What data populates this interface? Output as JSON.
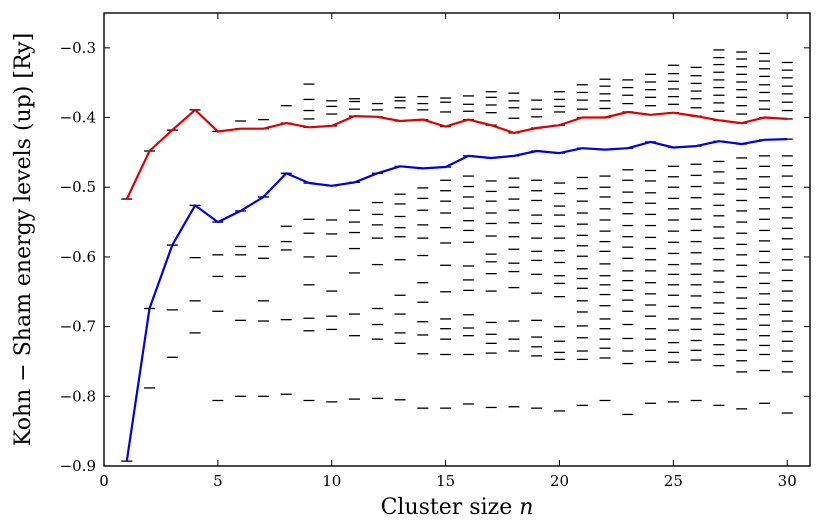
{
  "chart_data": {
    "type": "scatter",
    "xlabel": "Cluster size",
    "xlabel_var": "n",
    "ylabel": "Kohn − Sham energy levels (up) [Ry]",
    "xlim": [
      0,
      31
    ],
    "ylim": [
      -0.9,
      -0.25
    ],
    "xticks": [
      0,
      5,
      10,
      15,
      20,
      25,
      30
    ],
    "yticks": [
      -0.9,
      -0.8,
      -0.7,
      -0.6,
      -0.5,
      -0.4,
      -0.3
    ],
    "ytick_labels": [
      "−0.9",
      "−0.8",
      "−0.7",
      "−0.6",
      "−0.5",
      "−0.4",
      "−0.3"
    ],
    "colors": {
      "homo": "#e00000",
      "lumo": "#0000e0",
      "levels": "#000000"
    },
    "series": [
      {
        "name": "red",
        "color": "#e00000",
        "x": [
          1,
          2,
          3,
          4,
          5,
          6,
          7,
          8,
          9,
          10,
          11,
          12,
          13,
          14,
          15,
          16,
          17,
          18,
          19,
          20,
          21,
          22,
          23,
          24,
          25,
          26,
          27,
          28,
          29,
          30
        ],
        "values": [
          -0.517,
          -0.448,
          -0.418,
          -0.389,
          -0.42,
          -0.416,
          -0.416,
          -0.408,
          -0.414,
          -0.412,
          -0.398,
          -0.399,
          -0.405,
          -0.403,
          -0.413,
          -0.403,
          -0.411,
          -0.422,
          -0.415,
          -0.411,
          -0.4,
          -0.4,
          -0.392,
          -0.396,
          -0.393,
          -0.398,
          -0.404,
          -0.408,
          -0.4,
          -0.402
        ]
      },
      {
        "name": "blue",
        "color": "#0000e0",
        "x": [
          1,
          2,
          3,
          4,
          5,
          6,
          7,
          8,
          9,
          10,
          11,
          12,
          13,
          14,
          15,
          16,
          17,
          18,
          19,
          20,
          21,
          22,
          23,
          24,
          25,
          26,
          27,
          28,
          29,
          30
        ],
        "values": [
          -0.893,
          -0.674,
          -0.583,
          -0.526,
          -0.55,
          -0.534,
          -0.514,
          -0.48,
          -0.494,
          -0.498,
          -0.493,
          -0.48,
          -0.47,
          -0.473,
          -0.471,
          -0.455,
          -0.458,
          -0.455,
          -0.448,
          -0.451,
          -0.444,
          -0.446,
          -0.444,
          -0.435,
          -0.443,
          -0.441,
          -0.434,
          -0.438,
          -0.432,
          -0.431
        ]
      }
    ],
    "levels": [
      {
        "n": 1,
        "e": [
          -0.893,
          -0.517
        ]
      },
      {
        "n": 2,
        "e": [
          -0.788,
          -0.674,
          -0.448
        ]
      },
      {
        "n": 3,
        "e": [
          -0.744,
          -0.676,
          -0.583,
          -0.418
        ]
      },
      {
        "n": 4,
        "e": [
          -0.709,
          -0.663,
          -0.601,
          -0.526,
          -0.389
        ]
      },
      {
        "n": 5,
        "e": [
          -0.806,
          -0.678,
          -0.628,
          -0.597,
          -0.55,
          -0.42
        ]
      },
      {
        "n": 6,
        "e": [
          -0.8,
          -0.691,
          -0.628,
          -0.597,
          -0.585,
          -0.534,
          -0.416,
          -0.405
        ]
      },
      {
        "n": 7,
        "e": [
          -0.8,
          -0.692,
          -0.663,
          -0.602,
          -0.585,
          -0.514,
          -0.416,
          -0.403
        ]
      },
      {
        "n": 8,
        "e": [
          -0.797,
          -0.69,
          -0.59,
          -0.578,
          -0.556,
          -0.48,
          -0.408,
          -0.383
        ]
      },
      {
        "n": 9,
        "e": [
          -0.806,
          -0.706,
          -0.688,
          -0.64,
          -0.6,
          -0.566,
          -0.546,
          -0.494,
          -0.414,
          -0.402,
          -0.39,
          -0.374,
          -0.352
        ]
      },
      {
        "n": 10,
        "e": [
          -0.808,
          -0.704,
          -0.685,
          -0.649,
          -0.599,
          -0.567,
          -0.547,
          -0.498,
          -0.412,
          -0.395,
          -0.384,
          -0.376
        ]
      },
      {
        "n": 11,
        "e": [
          -0.804,
          -0.713,
          -0.682,
          -0.623,
          -0.588,
          -0.565,
          -0.55,
          -0.533,
          -0.493,
          -0.398,
          -0.388,
          -0.377,
          -0.373
        ]
      },
      {
        "n": 12,
        "e": [
          -0.803,
          -0.718,
          -0.697,
          -0.674,
          -0.611,
          -0.573,
          -0.554,
          -0.539,
          -0.522,
          -0.48,
          -0.399,
          -0.389,
          -0.38
        ]
      },
      {
        "n": 13,
        "e": [
          -0.805,
          -0.724,
          -0.709,
          -0.682,
          -0.655,
          -0.604,
          -0.571,
          -0.558,
          -0.542,
          -0.524,
          -0.51,
          -0.47,
          -0.405,
          -0.386,
          -0.376,
          -0.371
        ]
      },
      {
        "n": 14,
        "e": [
          -0.817,
          -0.739,
          -0.712,
          -0.693,
          -0.665,
          -0.637,
          -0.598,
          -0.573,
          -0.554,
          -0.533,
          -0.516,
          -0.501,
          -0.473,
          -0.403,
          -0.389,
          -0.38,
          -0.37
        ]
      },
      {
        "n": 15,
        "e": [
          -0.817,
          -0.74,
          -0.718,
          -0.703,
          -0.689,
          -0.65,
          -0.612,
          -0.58,
          -0.558,
          -0.537,
          -0.52,
          -0.505,
          -0.49,
          -0.471,
          -0.413,
          -0.392,
          -0.378,
          -0.372
        ]
      },
      {
        "n": 16,
        "e": [
          -0.811,
          -0.74,
          -0.713,
          -0.702,
          -0.683,
          -0.648,
          -0.633,
          -0.613,
          -0.579,
          -0.562,
          -0.548,
          -0.53,
          -0.514,
          -0.499,
          -0.484,
          -0.455,
          -0.403,
          -0.391,
          -0.381,
          -0.369
        ]
      },
      {
        "n": 17,
        "e": [
          -0.816,
          -0.738,
          -0.724,
          -0.711,
          -0.694,
          -0.649,
          -0.624,
          -0.607,
          -0.596,
          -0.57,
          -0.552,
          -0.537,
          -0.52,
          -0.506,
          -0.491,
          -0.458,
          -0.411,
          -0.393,
          -0.382,
          -0.371,
          -0.363
        ]
      },
      {
        "n": 18,
        "e": [
          -0.815,
          -0.735,
          -0.718,
          -0.692,
          -0.644,
          -0.621,
          -0.609,
          -0.589,
          -0.571,
          -0.551,
          -0.533,
          -0.517,
          -0.5,
          -0.487,
          -0.455,
          -0.422,
          -0.401,
          -0.386,
          -0.376,
          -0.365
        ]
      },
      {
        "n": 19,
        "e": [
          -0.817,
          -0.742,
          -0.729,
          -0.715,
          -0.691,
          -0.652,
          -0.625,
          -0.605,
          -0.592,
          -0.573,
          -0.552,
          -0.54,
          -0.519,
          -0.505,
          -0.49,
          -0.448,
          -0.415,
          -0.399,
          -0.388,
          -0.375
        ]
      },
      {
        "n": 20,
        "e": [
          -0.821,
          -0.747,
          -0.737,
          -0.721,
          -0.7,
          -0.657,
          -0.638,
          -0.627,
          -0.608,
          -0.591,
          -0.573,
          -0.556,
          -0.54,
          -0.527,
          -0.509,
          -0.494,
          -0.451,
          -0.411,
          -0.392,
          -0.384,
          -0.374,
          -0.363
        ]
      },
      {
        "n": 21,
        "e": [
          -0.813,
          -0.747,
          -0.735,
          -0.716,
          -0.699,
          -0.679,
          -0.663,
          -0.645,
          -0.631,
          -0.617,
          -0.599,
          -0.584,
          -0.569,
          -0.553,
          -0.537,
          -0.52,
          -0.502,
          -0.486,
          -0.444,
          -0.4,
          -0.388,
          -0.375,
          -0.364,
          -0.353
        ]
      },
      {
        "n": 22,
        "e": [
          -0.806,
          -0.745,
          -0.731,
          -0.718,
          -0.703,
          -0.689,
          -0.67,
          -0.654,
          -0.64,
          -0.627,
          -0.61,
          -0.592,
          -0.578,
          -0.563,
          -0.547,
          -0.531,
          -0.514,
          -0.5,
          -0.484,
          -0.446,
          -0.4,
          -0.387,
          -0.376,
          -0.366,
          -0.355,
          -0.345
        ]
      },
      {
        "n": 23,
        "e": [
          -0.826,
          -0.753,
          -0.735,
          -0.717,
          -0.697,
          -0.678,
          -0.662,
          -0.648,
          -0.634,
          -0.62,
          -0.602,
          -0.586,
          -0.571,
          -0.555,
          -0.538,
          -0.522,
          -0.507,
          -0.49,
          -0.475,
          -0.444,
          -0.392,
          -0.38,
          -0.368,
          -0.357,
          -0.346
        ]
      },
      {
        "n": 24,
        "e": [
          -0.81,
          -0.75,
          -0.734,
          -0.718,
          -0.703,
          -0.685,
          -0.669,
          -0.653,
          -0.637,
          -0.62,
          -0.604,
          -0.588,
          -0.572,
          -0.555,
          -0.539,
          -0.523,
          -0.508,
          -0.491,
          -0.476,
          -0.435,
          -0.396,
          -0.383,
          -0.371,
          -0.36,
          -0.349,
          -0.338
        ]
      },
      {
        "n": 25,
        "e": [
          -0.808,
          -0.751,
          -0.737,
          -0.723,
          -0.705,
          -0.689,
          -0.671,
          -0.655,
          -0.64,
          -0.625,
          -0.611,
          -0.595,
          -0.579,
          -0.563,
          -0.547,
          -0.531,
          -0.516,
          -0.5,
          -0.485,
          -0.47,
          -0.443,
          -0.393,
          -0.381,
          -0.37,
          -0.359,
          -0.348,
          -0.337,
          -0.325
        ]
      },
      {
        "n": 26,
        "e": [
          -0.806,
          -0.748,
          -0.734,
          -0.72,
          -0.704,
          -0.689,
          -0.673,
          -0.656,
          -0.64,
          -0.625,
          -0.61,
          -0.594,
          -0.578,
          -0.562,
          -0.546,
          -0.531,
          -0.515,
          -0.499,
          -0.483,
          -0.467,
          -0.441,
          -0.398,
          -0.386,
          -0.373,
          -0.362,
          -0.351,
          -0.34,
          -0.328
        ]
      },
      {
        "n": 27,
        "e": [
          -0.813,
          -0.756,
          -0.74,
          -0.726,
          -0.711,
          -0.697,
          -0.681,
          -0.666,
          -0.651,
          -0.636,
          -0.62,
          -0.604,
          -0.588,
          -0.573,
          -0.557,
          -0.541,
          -0.526,
          -0.51,
          -0.494,
          -0.478,
          -0.463,
          -0.434,
          -0.404,
          -0.391,
          -0.379,
          -0.368,
          -0.357,
          -0.346,
          -0.335,
          -0.324,
          -0.314,
          -0.303
        ]
      },
      {
        "n": 28,
        "e": [
          -0.818,
          -0.765,
          -0.749,
          -0.734,
          -0.719,
          -0.704,
          -0.689,
          -0.674,
          -0.659,
          -0.644,
          -0.628,
          -0.612,
          -0.597,
          -0.582,
          -0.566,
          -0.55,
          -0.534,
          -0.519,
          -0.503,
          -0.488,
          -0.473,
          -0.458,
          -0.438,
          -0.408,
          -0.395,
          -0.383,
          -0.371,
          -0.36,
          -0.349,
          -0.338,
          -0.327,
          -0.316,
          -0.306
        ]
      },
      {
        "n": 29,
        "e": [
          -0.81,
          -0.763,
          -0.74,
          -0.727,
          -0.713,
          -0.698,
          -0.683,
          -0.668,
          -0.653,
          -0.638,
          -0.623,
          -0.608,
          -0.592,
          -0.577,
          -0.562,
          -0.546,
          -0.531,
          -0.515,
          -0.5,
          -0.485,
          -0.47,
          -0.455,
          -0.432,
          -0.4,
          -0.388,
          -0.376,
          -0.364,
          -0.353,
          -0.341,
          -0.33,
          -0.319,
          -0.308
        ]
      },
      {
        "n": 30,
        "e": [
          -0.824,
          -0.765,
          -0.75,
          -0.735,
          -0.721,
          -0.707,
          -0.692,
          -0.678,
          -0.663,
          -0.649,
          -0.634,
          -0.619,
          -0.604,
          -0.589,
          -0.574,
          -0.559,
          -0.544,
          -0.529,
          -0.514,
          -0.499,
          -0.484,
          -0.469,
          -0.455,
          -0.431,
          -0.402,
          -0.39,
          -0.378,
          -0.366,
          -0.355,
          -0.343,
          -0.332,
          -0.321
        ]
      }
    ]
  }
}
